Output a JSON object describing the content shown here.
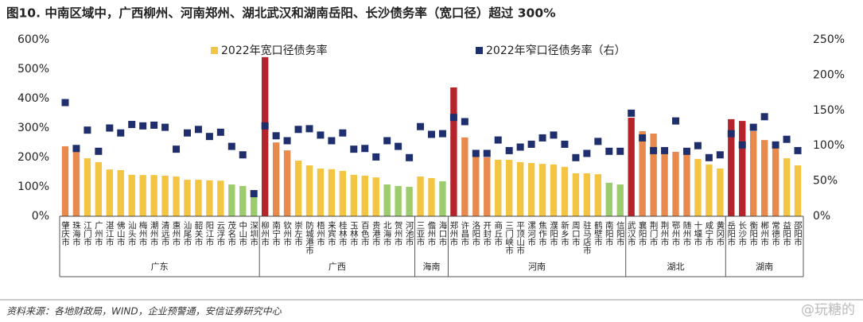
{
  "chart_data": {
    "type": "bar_scatter",
    "title": "图10. 中南区域中，广西柳州、河南郑州、湖北武汉和湖南岳阳、长沙债务率（宽口径）超过 300%",
    "source": "资料来源：各地财政局，WIND，企业预警通，安信证券研究中心",
    "watermark": "@玩糖的",
    "categories": [
      "肇庆市",
      "珠海市",
      "江门市",
      "广州市",
      "湛江市",
      "佛山市",
      "汕头市",
      "梅州市",
      "潮州市",
      "清远市",
      "惠州市",
      "汕尾市",
      "韶关市",
      "阳江市",
      "云浮市",
      "茂名市",
      "中山市",
      "深圳市",
      "柳州市",
      "南宁市",
      "钦州市",
      "崇左市",
      "防城港市",
      "梧州市",
      "来宾市",
      "桂林市",
      "玉林市",
      "百色市",
      "贵港市",
      "北海市",
      "贺州市",
      "河池市",
      "三亚市",
      "儋州市",
      "海口市",
      "郑州市",
      "许昌市",
      "洛阳市",
      "开封市",
      "商丘市",
      "三门峡市",
      "平顶山市",
      "漯河市",
      "焦作市",
      "濮阳市",
      "新乡市",
      "周口市",
      "驻马店市",
      "鹤壁市",
      "南阳市",
      "信阳市",
      "武汉市",
      "襄阳市",
      "荆门市",
      "荆州市",
      "鄂州市",
      "随州市",
      "十堰市",
      "咸宁市",
      "黄冈市",
      "岳阳市",
      "长沙市",
      "衡阳市",
      "郴州市",
      "常德市",
      "益阳市",
      "邵阳市"
    ],
    "groups": [
      {
        "name": "广东",
        "size": 18
      },
      {
        "name": "广西",
        "size": 14
      },
      {
        "name": "海南",
        "size": 3
      },
      {
        "name": "河南",
        "size": 16
      },
      {
        "name": "湖北",
        "size": 9
      },
      {
        "name": "湖南",
        "size": 7
      }
    ],
    "series": [
      {
        "name": "2022年宽口径债务率",
        "color": "#f4c542",
        "axis": "y",
        "values": [
          238,
          222,
          197,
          184,
          159,
          157,
          141,
          140,
          140,
          138,
          135,
          124,
          124,
          122,
          121,
          108,
          103,
          73,
          541,
          251,
          224,
          189,
          173,
          162,
          160,
          154,
          141,
          138,
          132,
          108,
          103,
          100,
          135,
          130,
          119,
          438,
          268,
          205,
          200,
          192,
          192,
          184,
          181,
          178,
          176,
          168,
          146,
          146,
          143,
          114,
          108,
          335,
          289,
          281,
          222,
          219,
          211,
          195,
          176,
          162,
          330,
          324,
          289,
          259,
          235,
          197,
          173
        ],
        "colors": [
          "#e8894e",
          "#e8894e",
          "#f4c542",
          "#f4c542",
          "#f4c542",
          "#f4c542",
          "#f4c542",
          "#f4c542",
          "#f4c542",
          "#f4c542",
          "#f4c542",
          "#f4c542",
          "#f4c542",
          "#f4c542",
          "#f4c542",
          "#9dcc6e",
          "#9dcc6e",
          "#9dcc6e",
          "#b5242a",
          "#e8894e",
          "#e8894e",
          "#f4c542",
          "#f4c542",
          "#f4c542",
          "#f4c542",
          "#f4c542",
          "#f4c542",
          "#f4c542",
          "#f4c542",
          "#9dcc6e",
          "#9dcc6e",
          "#9dcc6e",
          "#f4c542",
          "#f4c542",
          "#9dcc6e",
          "#b5242a",
          "#e8894e",
          "#e8894e",
          "#e8894e",
          "#f4c542",
          "#f4c542",
          "#f4c542",
          "#f4c542",
          "#f4c542",
          "#f4c542",
          "#f4c542",
          "#f4c542",
          "#f4c542",
          "#f4c542",
          "#9dcc6e",
          "#9dcc6e",
          "#b5242a",
          "#e8894e",
          "#e8894e",
          "#e8894e",
          "#e8894e",
          "#e8894e",
          "#f4c542",
          "#f4c542",
          "#f4c542",
          "#b5242a",
          "#b5242a",
          "#e8894e",
          "#e8894e",
          "#e8894e",
          "#f4c542",
          "#f4c542"
        ]
      },
      {
        "name": "2022年窄口径债务率（右）",
        "color": "#1f2f6e",
        "axis": "y2",
        "values": [
          161,
          96,
          122,
          92,
          125,
          118,
          130,
          128,
          129,
          126,
          95,
          118,
          123,
          113,
          119,
          99,
          87,
          32,
          128,
          114,
          107,
          123,
          124,
          115,
          107,
          118,
          95,
          96,
          84,
          107,
          99,
          83,
          127,
          116,
          117,
          140,
          134,
          89,
          89,
          108,
          93,
          98,
          102,
          111,
          115,
          102,
          83,
          89,
          106,
          92,
          92,
          146,
          111,
          93,
          93,
          135,
          92,
          100,
          83,
          87,
          117,
          101,
          126,
          141,
          101,
          109,
          93
        ]
      }
    ],
    "ylim": [
      0,
      600
    ],
    "yticks": [
      {
        "value": 0,
        "label": "0%"
      },
      {
        "value": 100,
        "label": "100%"
      },
      {
        "value": 200,
        "label": "200%"
      },
      {
        "value": 300,
        "label": "300%"
      },
      {
        "value": 400,
        "label": "400%"
      },
      {
        "value": 500,
        "label": "500%"
      },
      {
        "value": 600,
        "label": "600%"
      }
    ],
    "y2lim": [
      0,
      250
    ],
    "y2ticks": [
      {
        "value": 0,
        "label": "0%"
      },
      {
        "value": 50,
        "label": "50%"
      },
      {
        "value": 100,
        "label": "100%"
      },
      {
        "value": 150,
        "label": "150%"
      },
      {
        "value": 200,
        "label": "200%"
      },
      {
        "value": 250,
        "label": "250%"
      }
    ]
  }
}
